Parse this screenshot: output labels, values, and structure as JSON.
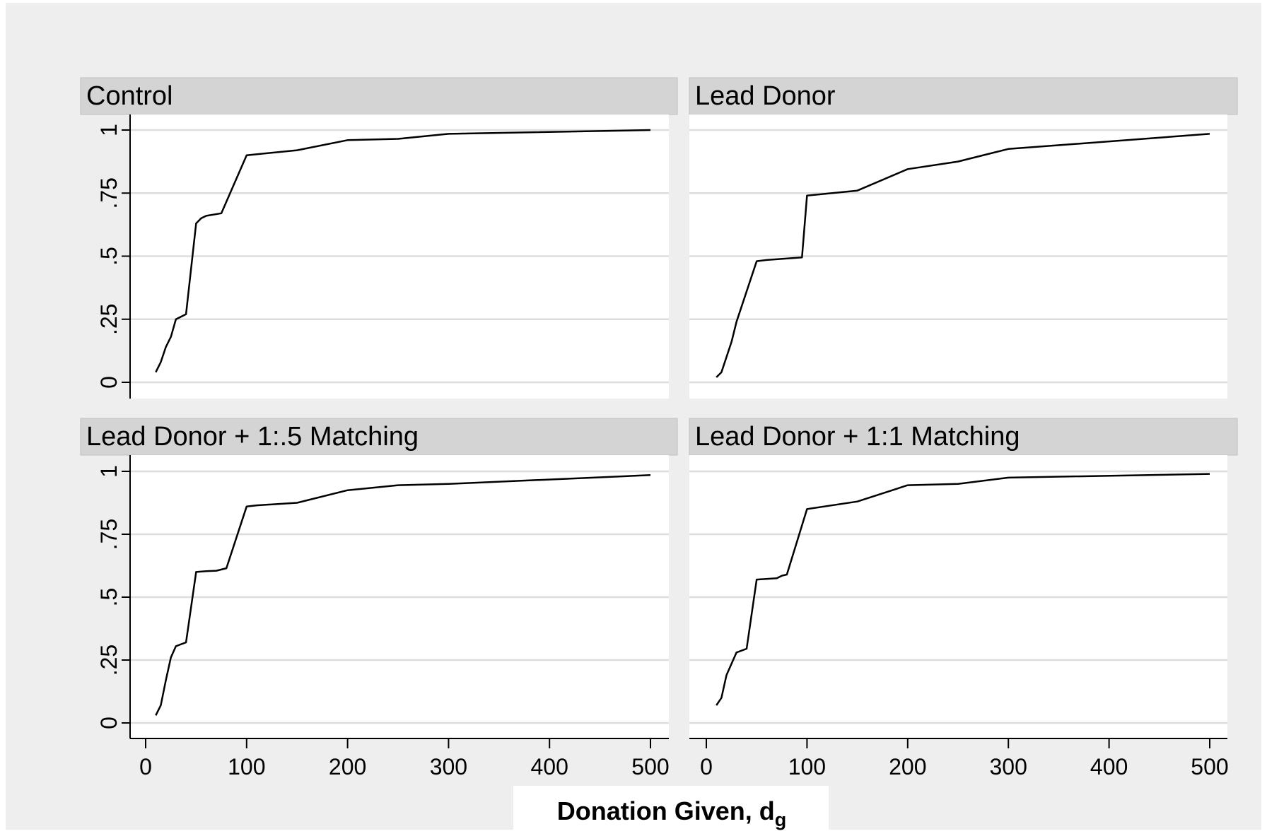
{
  "colors": {
    "outer_bg": "#eeeeee",
    "panel_title_bg": "#d4d4d4",
    "grid": "#dddddd",
    "line": "#000000",
    "plot_bg": "#ffffff"
  },
  "xlabel_main": "Donation Given, d",
  "xlabel_subscript": "g",
  "chart_data": [
    {
      "type": "line",
      "title": "Control",
      "xlim": [
        0,
        500
      ],
      "ylim": [
        0,
        1
      ],
      "xticks": [
        "0",
        "100",
        "200",
        "300",
        "400",
        "500"
      ],
      "yticks": [
        "0",
        ".25",
        ".5",
        ".75",
        "1"
      ],
      "grid": true,
      "x": [
        10,
        15,
        20,
        25,
        30,
        40,
        50,
        55,
        60,
        75,
        100,
        150,
        200,
        250,
        300,
        500
      ],
      "y": [
        0.04,
        0.08,
        0.14,
        0.18,
        0.25,
        0.27,
        0.63,
        0.65,
        0.66,
        0.67,
        0.9,
        0.92,
        0.96,
        0.965,
        0.985,
        1.0
      ]
    },
    {
      "type": "line",
      "title": "Lead Donor",
      "xlim": [
        0,
        500
      ],
      "ylim": [
        0,
        1
      ],
      "xticks": [
        "0",
        "100",
        "200",
        "300",
        "400",
        "500"
      ],
      "yticks": [
        "0",
        ".25",
        ".5",
        ".75",
        "1"
      ],
      "grid": true,
      "x": [
        10,
        15,
        25,
        30,
        50,
        60,
        95,
        100,
        150,
        200,
        250,
        300,
        500
      ],
      "y": [
        0.02,
        0.04,
        0.16,
        0.24,
        0.48,
        0.485,
        0.495,
        0.74,
        0.76,
        0.845,
        0.875,
        0.925,
        0.985
      ]
    },
    {
      "type": "line",
      "title": "Lead Donor + 1:.5 Matching",
      "xlim": [
        0,
        500
      ],
      "ylim": [
        0,
        1
      ],
      "xticks": [
        "0",
        "100",
        "200",
        "300",
        "400",
        "500"
      ],
      "yticks": [
        "0",
        ".25",
        ".5",
        ".75",
        "1"
      ],
      "grid": true,
      "x": [
        10,
        15,
        20,
        25,
        30,
        40,
        50,
        60,
        70,
        80,
        100,
        110,
        150,
        200,
        250,
        300,
        500
      ],
      "y": [
        0.03,
        0.07,
        0.17,
        0.26,
        0.305,
        0.32,
        0.6,
        0.603,
        0.605,
        0.615,
        0.86,
        0.865,
        0.875,
        0.925,
        0.945,
        0.95,
        0.985
      ]
    },
    {
      "type": "line",
      "title": "Lead Donor + 1:1 Matching",
      "xlim": [
        0,
        500
      ],
      "ylim": [
        0,
        1
      ],
      "xticks": [
        "0",
        "100",
        "200",
        "300",
        "400",
        "500"
      ],
      "yticks": [
        "0",
        ".25",
        ".5",
        ".75",
        "1"
      ],
      "grid": true,
      "x": [
        10,
        15,
        20,
        30,
        40,
        50,
        70,
        75,
        80,
        100,
        150,
        200,
        250,
        300,
        500
      ],
      "y": [
        0.07,
        0.1,
        0.19,
        0.28,
        0.295,
        0.57,
        0.575,
        0.585,
        0.59,
        0.85,
        0.88,
        0.945,
        0.95,
        0.975,
        0.99
      ]
    }
  ]
}
